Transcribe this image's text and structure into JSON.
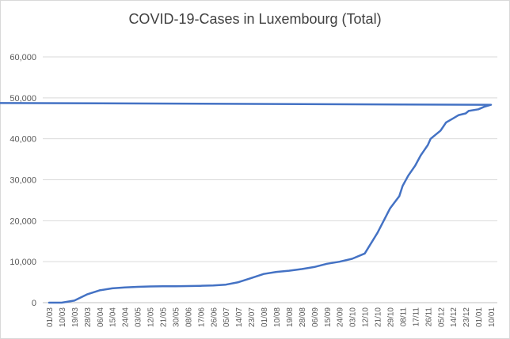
{
  "chart_data": {
    "type": "line",
    "title": "COVID-19-Cases in Luxembourg (Total)",
    "xlabel": "",
    "ylabel": "",
    "ylim": [
      0,
      60000
    ],
    "y_ticks": [
      0,
      10000,
      20000,
      30000,
      40000,
      50000,
      60000
    ],
    "y_tick_labels": [
      "0",
      "10,000",
      "20,000",
      "30,000",
      "40,000",
      "50,000",
      "60,000"
    ],
    "x_tick_labels": [
      "01/03",
      "10/03",
      "19/03",
      "28/03",
      "06/04",
      "15/04",
      "24/04",
      "03/05",
      "12/05",
      "21/05",
      "30/05",
      "08/06",
      "17/06",
      "26/06",
      "05/07",
      "14/07",
      "23/07",
      "01/08",
      "10/08",
      "19/08",
      "28/08",
      "06/09",
      "15/09",
      "24/09",
      "03/10",
      "12/10",
      "21/10",
      "29/10",
      "08/11",
      "17/11",
      "26/11",
      "05/12",
      "14/12",
      "23/12",
      "01/01",
      "10/01"
    ],
    "grid": "horizontal",
    "line_color": "#4472c4",
    "series": [
      {
        "x": [
          "01/03",
          "10/03",
          "19/03",
          "28/03",
          "06/04",
          "15/04",
          "24/04",
          "03/05",
          "12/05",
          "21/05",
          "30/05",
          "08/06",
          "17/06",
          "26/06",
          "05/07",
          "14/07",
          "23/07",
          "01/08",
          "10/08",
          "19/08",
          "28/08",
          "06/09",
          "15/09",
          "24/09",
          "03/10",
          "12/10",
          "21/10",
          "29/10",
          "03/11",
          "08/11",
          "12/11",
          "17/11",
          "21/11",
          "26/11",
          "30/11",
          "05/12",
          "09/12",
          "14/12",
          "18/12",
          "23/12",
          "27/12",
          "01/01",
          "05/01",
          "10/01",
          "14/01"
        ],
        "values": [
          0,
          0,
          500,
          2000,
          3000,
          3500,
          3700,
          3850,
          3950,
          4000,
          4020,
          4050,
          4100,
          4200,
          4400,
          5000,
          6000,
          7000,
          7500,
          7800,
          8200,
          8700,
          9500,
          10000,
          10700,
          12000,
          17000,
          23000,
          26000,
          28500,
          31000,
          33500,
          36000,
          38500,
          40000,
          42000,
          44000,
          45000,
          45800,
          46200,
          46800,
          47200,
          47800,
          48300,
          48900
        ]
      }
    ]
  }
}
